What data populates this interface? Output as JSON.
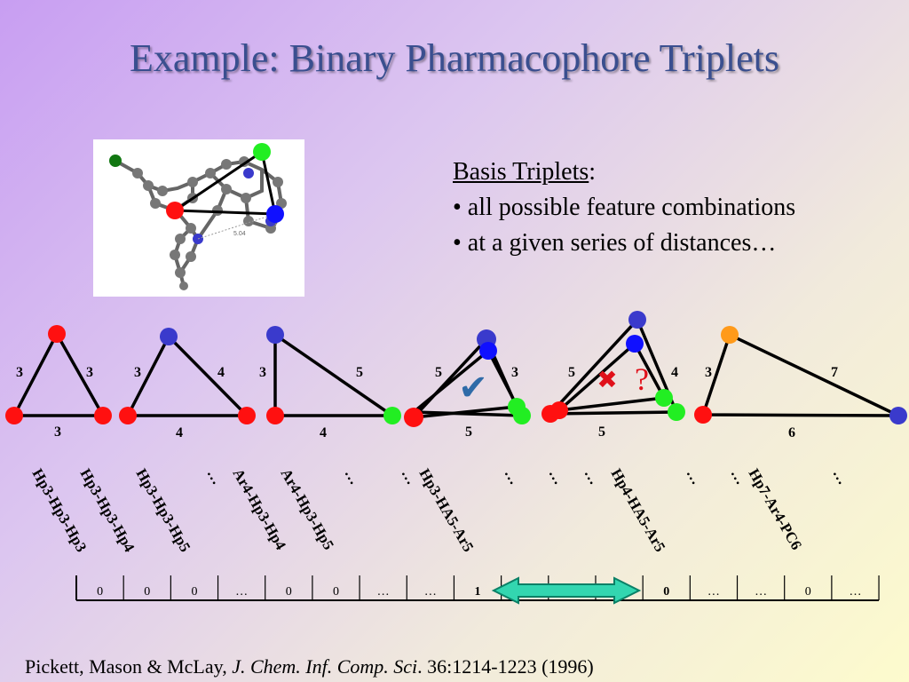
{
  "title": "Example: Binary Pharmacophore Triplets",
  "basis": {
    "heading": "Basis Triplets",
    "heading_suffix": ":",
    "bullets": [
      "• all possible feature combinations",
      "• at a given series of distances…"
    ]
  },
  "molecule": {
    "distance_label": "5.04"
  },
  "colors": {
    "red": "#ff1010",
    "blue": "#3a3acc",
    "green": "#22ee22",
    "orange": "#ff9a1a",
    "check": "#2f6ba8",
    "cross": "#e0101a",
    "arrow_fill": "#33d6b0",
    "arrow_stroke": "#0a8066"
  },
  "triangles": [
    {
      "left": "3",
      "right": "3",
      "bottom": "3"
    },
    {
      "left": "3",
      "right": "4",
      "bottom": "4"
    },
    {
      "left": "3",
      "right": "5",
      "bottom": "4"
    },
    {
      "left": "5",
      "right": "3",
      "bottom": "5"
    },
    {
      "left": "5",
      "right": "4",
      "bottom": "5"
    },
    {
      "left": "3",
      "right": "7",
      "bottom": "6"
    }
  ],
  "marks": {
    "check": "✔",
    "cross": "✖",
    "question": "?"
  },
  "patterns": [
    "Hp3-Hp3-Hp3",
    "Hp3-Hp3-Hp4",
    "Hp3-Hp3-Hp5",
    "…",
    "Ar4-Hp3-Hp4",
    "Ar4-Hp3-Hp5",
    "…",
    "…",
    "Hp3-HA5-Ar5",
    "…",
    "…",
    "…",
    "Hp4-HA5-Ar5",
    "…",
    "…",
    "Hp7-Ar4-PC6",
    "…"
  ],
  "bits": [
    "0",
    "0",
    "0",
    "…",
    "0",
    "0",
    "…",
    "…",
    "1",
    "",
    "",
    "",
    "0",
    "…",
    "…",
    "0",
    "…"
  ],
  "citation": {
    "authors": "Pickett, Mason & McLay, ",
    "journal": "J. Chem. Inf. Comp. Sci",
    "rest": ". 36:1214-1223 (1996)"
  }
}
